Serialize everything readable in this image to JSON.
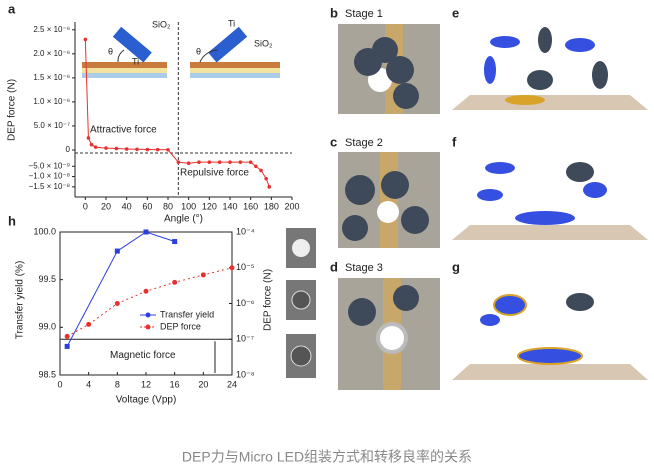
{
  "caption": "DEP力与Micro LED组装方式和转移良率的关系",
  "panel_labels": [
    "a",
    "b",
    "c",
    "d",
    "e",
    "f",
    "g",
    "h"
  ],
  "stages": [
    "Stage 1",
    "Stage 2",
    "Stage 3"
  ],
  "chart_data": [
    {
      "type": "line",
      "x_label": "Angle (°)",
      "y_label": "DEP force (N)",
      "color": "#e8302f",
      "annotations": [
        "Attractive force",
        "Repulsive force"
      ],
      "insets": [
        [
          "θ",
          "SiO₂",
          "Ti"
        ],
        [
          "θ",
          "Ti",
          "SiO₂"
        ]
      ],
      "reference_x": 90,
      "x": [
        0,
        3,
        6,
        10,
        20,
        30,
        40,
        50,
        60,
        70,
        80,
        90,
        100,
        110,
        120,
        130,
        140,
        150,
        160,
        165,
        170,
        175,
        178
      ],
      "values": [
        2.3e-06,
        2.5e-07,
        1.1e-07,
        6e-08,
        4e-08,
        3e-08,
        2e-08,
        1.5e-08,
        1e-08,
        8e-09,
        5e-09,
        -3e-09,
        -3.5e-09,
        -3e-09,
        -3e-09,
        -3e-09,
        -3e-09,
        -3e-09,
        -3e-09,
        -5e-09,
        -7e-09,
        -1.1e-08,
        -1.5e-08
      ],
      "xlim": [
        -10,
        200
      ],
      "xticks": [
        0,
        20,
        40,
        60,
        80,
        100,
        120,
        140,
        160,
        180,
        200
      ],
      "ylim": [
        0,
        2.6e-06
      ],
      "y_break_lim": [
        -1.75e-08,
        0
      ],
      "yticks": [
        {
          "value": 2.5e-06,
          "label": "2.5 × 10⁻⁶"
        },
        {
          "value": 2e-06,
          "label": "2.0 × 10⁻⁶"
        },
        {
          "value": 1.5e-06,
          "label": "1.5 × 10⁻⁶"
        },
        {
          "value": 1e-06,
          "label": "1.0 × 10⁻⁶"
        },
        {
          "value": 5e-07,
          "label": "5.0 × 10⁻⁷"
        },
        0,
        {
          "value": -5e-09,
          "label": "−5.0 × 10⁻⁹"
        },
        {
          "value": -1e-08,
          "label": "−1.0 × 10⁻⁸"
        },
        {
          "value": -1.5e-08,
          "label": "−1.5 × 10⁻⁸"
        }
      ]
    },
    {
      "type": "line",
      "x_label": "Voltage (Vpp)",
      "y_label": "Transfer yield (%)",
      "y2_label": "DEP force (N)",
      "reference_y2": 1e-07,
      "reference_label": "Magnetic force",
      "y2_log": true,
      "xlim": [
        0,
        24
      ],
      "xticks": [
        0,
        4,
        8,
        12,
        16,
        20,
        24
      ],
      "ylim": [
        98.5,
        100
      ],
      "yticks": [
        {
          "value": 98.5,
          "label": "98.5"
        },
        {
          "value": 99,
          "label": "99.0"
        },
        {
          "value": 99.5,
          "label": "99.5"
        },
        {
          "value": 100,
          "label": "100.0"
        }
      ],
      "y2lim": [
        1e-08,
        0.0001
      ],
      "y2ticks": [
        {
          "value": 1e-08,
          "label": "10⁻⁸"
        },
        {
          "value": 1e-07,
          "label": "10⁻⁷"
        },
        {
          "value": 1e-06,
          "label": "10⁻⁶"
        },
        {
          "value": 1e-05,
          "label": "10⁻⁵"
        },
        {
          "value": 0.0001,
          "label": "10⁻⁴"
        }
      ],
      "series": [
        {
          "name": "Transfer yield",
          "color": "#2b3fe0",
          "line_style": "solid",
          "x": [
            1,
            8,
            12,
            16
          ],
          "values": [
            98.8,
            99.8,
            100.0,
            99.9
          ]
        },
        {
          "name": "DEP force",
          "color": "#e8302f",
          "line_style": "dotted",
          "axis": "y2",
          "x": [
            1,
            4,
            8,
            12,
            16,
            20,
            24
          ],
          "values": [
            1.2e-07,
            2.6e-07,
            1e-06,
            2.2e-06,
            3.9e-06,
            6.3e-06,
            1e-05
          ]
        }
      ]
    }
  ]
}
